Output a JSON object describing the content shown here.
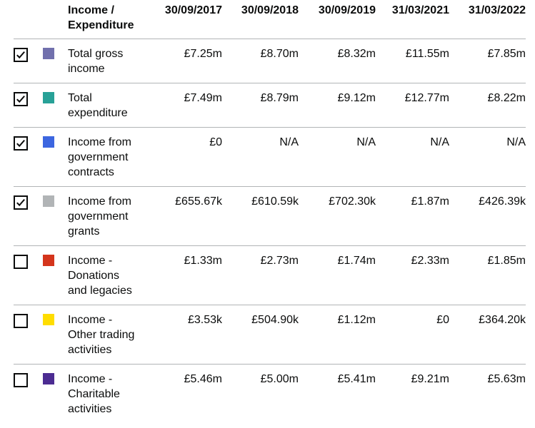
{
  "table": {
    "header_label": "Income / Expenditure",
    "dates": [
      "30/09/2017",
      "30/09/2018",
      "30/09/2019",
      "31/03/2021",
      "31/03/2022"
    ],
    "rows": [
      {
        "label": "Total gross income",
        "checked": true,
        "color": "#7170ad",
        "values": [
          "£7.25m",
          "£8.70m",
          "£8.32m",
          "£11.55m",
          "£7.85m"
        ]
      },
      {
        "label": "Total expenditure",
        "checked": true,
        "color": "#28a197",
        "values": [
          "£7.49m",
          "£8.79m",
          "£9.12m",
          "£12.77m",
          "£8.22m"
        ]
      },
      {
        "label": "Income from government contracts",
        "checked": true,
        "color": "#3c66e0",
        "values": [
          "£0",
          "N/A",
          "N/A",
          "N/A",
          "N/A"
        ]
      },
      {
        "label": "Income from government grants",
        "checked": true,
        "color": "#b1b4b6",
        "values": [
          "£655.67k",
          "£610.59k",
          "£702.30k",
          "£1.87m",
          "£426.39k"
        ]
      },
      {
        "label": "Income - Donations and legacies",
        "checked": false,
        "color": "#d4351c",
        "values": [
          "£1.33m",
          "£2.73m",
          "£1.74m",
          "£2.33m",
          "£1.85m"
        ]
      },
      {
        "label": "Income - Other trading activities",
        "checked": false,
        "color": "#ffdd00",
        "values": [
          "£3.53k",
          "£504.90k",
          "£1.12m",
          "£0",
          "£364.20k"
        ]
      },
      {
        "label": "Income - Charitable activities",
        "checked": false,
        "color": "#4c2c92",
        "values": [
          "£5.46m",
          "£5.00m",
          "£5.41m",
          "£9.21m",
          "£5.63m"
        ]
      }
    ]
  }
}
